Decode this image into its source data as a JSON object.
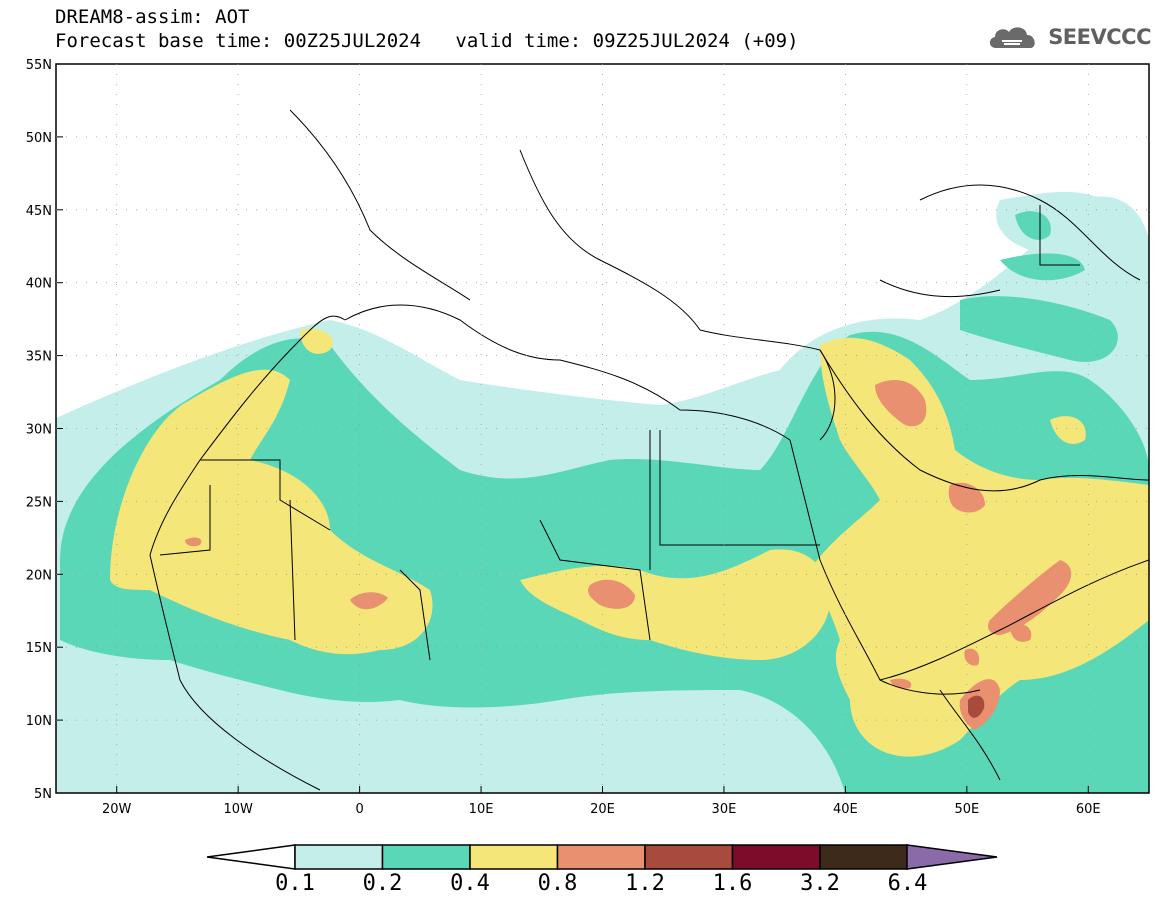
{
  "header": {
    "title": "DREAM8-assim: AOT",
    "base_time_label": "Forecast base time: 00Z25JUL2024",
    "valid_time_label": "valid time: 09Z25JUL2024 (+09)",
    "logo_text": "SEEVCCC",
    "logo_icon": "cloud-icon"
  },
  "map": {
    "lat_labels": [
      "55N",
      "50N",
      "45N",
      "40N",
      "35N",
      "30N",
      "25N",
      "20N",
      "15N",
      "10N",
      "5N"
    ],
    "lon_labels": [
      "20W",
      "10W",
      "0",
      "10E",
      "20E",
      "30E",
      "40E",
      "50E",
      "60E"
    ],
    "extent": {
      "lon_min": -25,
      "lon_max": 65,
      "lat_min": 5,
      "lat_max": 55
    }
  },
  "colorbar": {
    "labels": [
      "0.1",
      "0.2",
      "0.4",
      "0.8",
      "1.2",
      "1.6",
      "3.2",
      "6.4"
    ],
    "colors": [
      "#c4eeea",
      "#5ad7b6",
      "#f5e67a",
      "#e89070",
      "#a84a3c",
      "#7d0c2a",
      "#3e2a1a"
    ],
    "under_color": "#ffffff",
    "over_color": "#8a6aa8"
  }
}
